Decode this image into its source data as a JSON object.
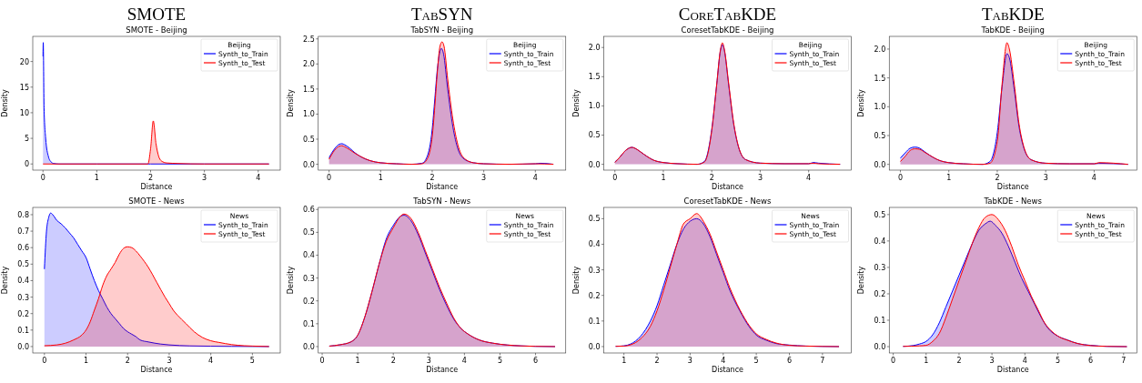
{
  "chart_data": [
    {
      "type": "area",
      "title": "SMOTE",
      "subtitle": "SMOTE - Beijing",
      "xlabel": "Distance",
      "ylabel": "Density",
      "legend_title": "Beijing",
      "legend": "top right",
      "xlim": [
        -0.19,
        4.41
      ],
      "xticks": [
        0,
        1,
        2,
        3,
        4
      ],
      "ylim": [
        -1.2,
        24.9
      ],
      "yticks": [
        0,
        5,
        10,
        15,
        20
      ],
      "series": [
        {
          "name": "Synth_to_Train",
          "color": "#0000ff",
          "x": [
            0,
            0.005,
            0.02,
            0.05,
            0.1,
            0.15,
            0.2,
            0.3,
            1,
            2,
            3,
            4.2
          ],
          "values": [
            21,
            23.7,
            11,
            5,
            1.5,
            0.4,
            0.1,
            0,
            0,
            0,
            0,
            0
          ]
        },
        {
          "name": "Synth_to_Test",
          "color": "#ff0000",
          "x": [
            0,
            1,
            1.95,
            2,
            2.05,
            2.1,
            2.15,
            2.2,
            2.3,
            2.5,
            3,
            4.2
          ],
          "values": [
            0,
            0,
            0,
            3,
            8.4,
            4,
            1.5,
            0.6,
            0.2,
            0.1,
            0,
            0
          ]
        }
      ]
    },
    {
      "type": "area",
      "title": "TabSYN",
      "subtitle": "TabSYN - Beijing",
      "xlabel": "Distance",
      "ylabel": "Density",
      "legend_title": "Beijing",
      "legend": "top right",
      "xlim": [
        -0.21,
        4.59
      ],
      "xticks": [
        0,
        1,
        2,
        3,
        4
      ],
      "ylim": [
        -0.117,
        2.55
      ],
      "yticks": [
        {
          "value": 0,
          "label": "0.0"
        },
        {
          "value": 0.5,
          "label": "0.5"
        },
        {
          "value": 1,
          "label": "1.0"
        },
        {
          "value": 1.5,
          "label": "1.5"
        },
        {
          "value": 2,
          "label": "2.0"
        },
        {
          "value": 2.5,
          "label": "2.5"
        }
      ],
      "series": [
        {
          "name": "Synth_to_Train",
          "color": "#0000ff",
          "x": [
            0,
            0.1,
            0.2,
            0.25,
            0.3,
            0.4,
            0.5,
            0.6,
            0.8,
            1,
            1.3,
            1.6,
            1.8,
            1.9,
            2,
            2.05,
            2.1,
            2.15,
            2.18,
            2.22,
            2.3,
            2.4,
            2.5,
            2.6,
            2.8,
            3,
            3.5,
            4,
            4.1,
            4.35
          ],
          "values": [
            0.13,
            0.3,
            0.4,
            0.41,
            0.39,
            0.32,
            0.23,
            0.16,
            0.07,
            0.03,
            0.01,
            0,
            0.02,
            0.15,
            0.7,
            1.3,
            1.9,
            2.25,
            2.31,
            2.2,
            1.5,
            0.75,
            0.3,
            0.12,
            0.03,
            0.01,
            0,
            0.01,
            0.02,
            0
          ]
        },
        {
          "name": "Synth_to_Test",
          "color": "#ff0000",
          "x": [
            0,
            0.1,
            0.2,
            0.25,
            0.3,
            0.4,
            0.5,
            0.6,
            0.8,
            1,
            1.3,
            1.6,
            1.8,
            1.9,
            2,
            2.05,
            2.1,
            2.15,
            2.19,
            2.23,
            2.3,
            2.4,
            2.5,
            2.6,
            2.8,
            3,
            3.5,
            4,
            4.35
          ],
          "values": [
            0.1,
            0.27,
            0.36,
            0.37,
            0.35,
            0.29,
            0.22,
            0.16,
            0.07,
            0.03,
            0.01,
            0,
            0.01,
            0.1,
            0.55,
            1.15,
            1.85,
            2.35,
            2.44,
            2.35,
            1.7,
            0.9,
            0.38,
            0.14,
            0.03,
            0.01,
            0,
            0.01,
            0
          ]
        }
      ]
    },
    {
      "type": "area",
      "title": "CoreTabKDE",
      "subtitle": "CoresetTabKDE - Beijing",
      "xlabel": "Distance",
      "ylabel": "Density",
      "legend_title": "Beijing",
      "legend": "top right",
      "xlim": [
        -0.23,
        4.88
      ],
      "xticks": [
        0,
        1,
        2,
        3,
        4
      ],
      "ylim": [
        -0.1,
        2.19
      ],
      "yticks": [
        {
          "value": 0,
          "label": "0.0"
        },
        {
          "value": 0.5,
          "label": "0.5"
        },
        {
          "value": 1,
          "label": "1.0"
        },
        {
          "value": 1.5,
          "label": "1.5"
        },
        {
          "value": 2,
          "label": "2.0"
        }
      ],
      "series": [
        {
          "name": "Synth_to_Train",
          "color": "#0000ff",
          "x": [
            0,
            0.1,
            0.2,
            0.3,
            0.35,
            0.4,
            0.5,
            0.6,
            0.8,
            1,
            1.3,
            1.7,
            1.85,
            2,
            2.1,
            2.18,
            2.22,
            2.26,
            2.35,
            2.45,
            2.55,
            2.7,
            3,
            3.5,
            4,
            4.1,
            4.2,
            4.65
          ],
          "values": [
            0.04,
            0.12,
            0.22,
            0.28,
            0.29,
            0.28,
            0.23,
            0.17,
            0.07,
            0.03,
            0.01,
            0,
            0.05,
            0.6,
            1.35,
            1.95,
            2.05,
            1.95,
            1.35,
            0.7,
            0.3,
            0.08,
            0.02,
            0.01,
            0.01,
            0.03,
            0.02,
            0
          ]
        },
        {
          "name": "Synth_to_Test",
          "color": "#ff0000",
          "x": [
            0,
            0.1,
            0.2,
            0.3,
            0.35,
            0.4,
            0.5,
            0.6,
            0.8,
            1,
            1.3,
            1.7,
            1.85,
            2,
            2.1,
            2.18,
            2.22,
            2.26,
            2.35,
            2.45,
            2.55,
            2.7,
            3,
            3.5,
            4,
            4.1,
            4.2,
            4.65
          ],
          "values": [
            0.03,
            0.12,
            0.22,
            0.28,
            0.29,
            0.28,
            0.23,
            0.17,
            0.07,
            0.03,
            0.01,
            0,
            0.04,
            0.58,
            1.35,
            1.97,
            2.08,
            1.97,
            1.38,
            0.72,
            0.31,
            0.08,
            0.02,
            0.01,
            0.01,
            0.02,
            0.01,
            0
          ]
        }
      ]
    },
    {
      "type": "area",
      "title": "TabKDE",
      "subtitle": "TabKDE - Beijing",
      "xlabel": "Distance",
      "ylabel": "Density",
      "legend_title": "Beijing",
      "legend": "top right",
      "xlim": [
        -0.23,
        4.88
      ],
      "xticks": [
        0,
        1,
        2,
        3,
        4
      ],
      "ylim": [
        -0.1,
        2.22
      ],
      "yticks": [
        {
          "value": 0,
          "label": "0.0"
        },
        {
          "value": 0.5,
          "label": "0.5"
        },
        {
          "value": 1,
          "label": "1.0"
        },
        {
          "value": 1.5,
          "label": "1.5"
        },
        {
          "value": 2,
          "label": "2.0"
        }
      ],
      "series": [
        {
          "name": "Synth_to_Train",
          "color": "#0000ff",
          "x": [
            0,
            0.1,
            0.2,
            0.3,
            0.4,
            0.5,
            0.6,
            0.8,
            1,
            1.3,
            1.7,
            1.85,
            2,
            2.1,
            2.2,
            2.25,
            2.35,
            2.45,
            2.55,
            2.7,
            3,
            3.5,
            4,
            4.1,
            4.7
          ],
          "values": [
            0.11,
            0.2,
            0.28,
            0.3,
            0.28,
            0.22,
            0.16,
            0.07,
            0.03,
            0.01,
            0,
            0.05,
            0.55,
            1.35,
            1.92,
            1.85,
            1.3,
            0.65,
            0.28,
            0.08,
            0.02,
            0.01,
            0.01,
            0.02,
            0
          ]
        },
        {
          "name": "Synth_to_Test",
          "color": "#ff0000",
          "x": [
            0,
            0.1,
            0.2,
            0.3,
            0.4,
            0.5,
            0.6,
            0.8,
            1,
            1.3,
            1.7,
            1.85,
            2,
            2.1,
            2.2,
            2.25,
            2.35,
            2.45,
            2.55,
            2.7,
            3,
            3.5,
            4,
            4.1,
            4.7
          ],
          "values": [
            0.05,
            0.14,
            0.24,
            0.27,
            0.26,
            0.21,
            0.16,
            0.07,
            0.03,
            0.01,
            0,
            0.02,
            0.4,
            1.4,
            2.11,
            2,
            1.4,
            0.7,
            0.3,
            0.08,
            0.02,
            0.01,
            0.01,
            0.03,
            0
          ]
        }
      ]
    },
    {
      "type": "area",
      "title": "SMOTE - News",
      "xlabel": "Distance",
      "ylabel": "Density",
      "legend_title": "News",
      "legend": "top right",
      "xlim": [
        -0.28,
        5.67
      ],
      "xticks": [
        0,
        1,
        2,
        3,
        4,
        5
      ],
      "ylim": [
        -0.039,
        0.844
      ],
      "yticks": [
        {
          "value": 0,
          "label": "0.0"
        },
        {
          "value": 0.1,
          "label": "0.1"
        },
        {
          "value": 0.2,
          "label": "0.2"
        },
        {
          "value": 0.3,
          "label": "0.3"
        },
        {
          "value": 0.4,
          "label": "0.4"
        },
        {
          "value": 0.5,
          "label": "0.5"
        },
        {
          "value": 0.6,
          "label": "0.6"
        },
        {
          "value": 0.7,
          "label": "0.7"
        },
        {
          "value": 0.8,
          "label": "0.8"
        }
      ],
      "series": [
        {
          "name": "Synth_to_Train",
          "color": "#0000ff",
          "x": [
            0,
            0.05,
            0.1,
            0.15,
            0.2,
            0.3,
            0.4,
            0.5,
            0.6,
            0.7,
            0.8,
            0.9,
            1,
            1.1,
            1.2,
            1.3,
            1.4,
            1.5,
            1.6,
            1.7,
            1.8,
            1.9,
            2,
            2.1,
            2.2,
            2.3,
            2.5,
            2.8,
            3,
            3.5,
            4,
            4.5,
            5.4
          ],
          "values": [
            0.47,
            0.7,
            0.78,
            0.81,
            0.8,
            0.765,
            0.745,
            0.72,
            0.69,
            0.66,
            0.62,
            0.58,
            0.54,
            0.47,
            0.4,
            0.34,
            0.29,
            0.24,
            0.2,
            0.17,
            0.14,
            0.11,
            0.09,
            0.075,
            0.06,
            0.04,
            0.028,
            0.015,
            0.01,
            0.004,
            0.002,
            0.001,
            0
          ]
        },
        {
          "name": "Synth_to_Test",
          "color": "#ff0000",
          "x": [
            0,
            0.3,
            0.5,
            0.7,
            0.9,
            1,
            1.1,
            1.2,
            1.3,
            1.4,
            1.5,
            1.6,
            1.7,
            1.8,
            1.9,
            2,
            2.1,
            2.2,
            2.3,
            2.5,
            2.7,
            2.9,
            3,
            3.1,
            3.2,
            3.4,
            3.6,
            3.8,
            4,
            4.2,
            4.5,
            4.8,
            5,
            5.4
          ],
          "values": [
            0.005,
            0.01,
            0.02,
            0.04,
            0.07,
            0.1,
            0.15,
            0.22,
            0.29,
            0.37,
            0.43,
            0.47,
            0.51,
            0.56,
            0.595,
            0.605,
            0.6,
            0.58,
            0.55,
            0.48,
            0.39,
            0.3,
            0.26,
            0.22,
            0.19,
            0.14,
            0.09,
            0.055,
            0.035,
            0.025,
            0.012,
            0.005,
            0.003,
            0
          ]
        }
      ]
    },
    {
      "type": "area",
      "title": "TabSYN - News",
      "xlabel": "Distance",
      "ylabel": "Density",
      "legend_title": "News",
      "legend": "top right",
      "xlim": [
        -0.11,
        6.85
      ],
      "xticks": [
        0,
        1,
        2,
        3,
        4,
        5,
        6
      ],
      "ylim": [
        -0.028,
        0.609
      ],
      "yticks": [
        {
          "value": 0,
          "label": "0.0"
        },
        {
          "value": 0.1,
          "label": "0.1"
        },
        {
          "value": 0.2,
          "label": "0.2"
        },
        {
          "value": 0.3,
          "label": "0.3"
        },
        {
          "value": 0.4,
          "label": "0.4"
        },
        {
          "value": 0.5,
          "label": "0.5"
        },
        {
          "value": 0.6,
          "label": "0.6"
        }
      ],
      "series": [
        {
          "name": "Synth_to_Train",
          "color": "#0000ff",
          "x": [
            0.2,
            0.5,
            0.8,
            1,
            1.2,
            1.4,
            1.6,
            1.8,
            2,
            2.2,
            2.3,
            2.5,
            2.7,
            2.9,
            3.1,
            3.3,
            3.5,
            3.7,
            3.9,
            4.1,
            4.4,
            4.8,
            5.2,
            5.6,
            6,
            6.55
          ],
          "values": [
            0.002,
            0.008,
            0.02,
            0.05,
            0.13,
            0.24,
            0.36,
            0.47,
            0.53,
            0.57,
            0.575,
            0.55,
            0.49,
            0.41,
            0.33,
            0.25,
            0.18,
            0.12,
            0.08,
            0.055,
            0.03,
            0.015,
            0.007,
            0.003,
            0.001,
            0
          ]
        },
        {
          "name": "Synth_to_Test",
          "color": "#ff0000",
          "x": [
            0.2,
            0.5,
            0.8,
            1,
            1.2,
            1.4,
            1.6,
            1.8,
            2,
            2.2,
            2.3,
            2.5,
            2.7,
            2.9,
            3.1,
            3.3,
            3.5,
            3.7,
            3.9,
            4.1,
            4.4,
            4.8,
            5.2,
            5.6,
            6,
            6.55
          ],
          "values": [
            0.002,
            0.008,
            0.02,
            0.05,
            0.13,
            0.24,
            0.36,
            0.46,
            0.52,
            0.57,
            0.58,
            0.56,
            0.5,
            0.42,
            0.34,
            0.26,
            0.19,
            0.125,
            0.08,
            0.055,
            0.03,
            0.015,
            0.007,
            0.003,
            0.001,
            0
          ]
        }
      ]
    },
    {
      "type": "area",
      "title": "CoresetTabKDE - News",
      "xlabel": "Distance",
      "ylabel": "Density",
      "legend_title": "News",
      "legend": "top right",
      "xlim": [
        0.39,
        7.87
      ],
      "xticks": [
        1,
        2,
        3,
        4,
        5,
        6,
        7
      ],
      "ylim": [
        -0.025,
        0.544
      ],
      "yticks": [
        {
          "value": 0,
          "label": "0.0"
        },
        {
          "value": 0.1,
          "label": "0.1"
        },
        {
          "value": 0.2,
          "label": "0.2"
        },
        {
          "value": 0.3,
          "label": "0.3"
        },
        {
          "value": 0.4,
          "label": "0.4"
        },
        {
          "value": 0.5,
          "label": "0.5"
        }
      ],
      "series": [
        {
          "name": "Synth_to_Train",
          "color": "#0000ff",
          "x": [
            0.75,
            1,
            1.2,
            1.5,
            1.8,
            2,
            2.2,
            2.4,
            2.6,
            2.8,
            3,
            3.2,
            3.4,
            3.6,
            3.8,
            4,
            4.2,
            4.5,
            4.8,
            5,
            5.3,
            5.6,
            6,
            6.5,
            7.5
          ],
          "values": [
            0.001,
            0.003,
            0.01,
            0.04,
            0.1,
            0.16,
            0.24,
            0.32,
            0.4,
            0.46,
            0.49,
            0.5,
            0.48,
            0.43,
            0.36,
            0.29,
            0.22,
            0.14,
            0.075,
            0.045,
            0.025,
            0.012,
            0.006,
            0.002,
            0
          ]
        },
        {
          "name": "Synth_to_Test",
          "color": "#ff0000",
          "x": [
            0.75,
            1,
            1.2,
            1.5,
            1.8,
            2,
            2.2,
            2.4,
            2.6,
            2.8,
            3,
            3.2,
            3.3,
            3.4,
            3.6,
            3.8,
            4,
            4.2,
            4.5,
            4.8,
            5,
            5.3,
            5.6,
            6,
            6.5,
            7.5
          ],
          "values": [
            0.001,
            0.002,
            0.007,
            0.03,
            0.08,
            0.14,
            0.22,
            0.31,
            0.4,
            0.48,
            0.5,
            0.52,
            0.51,
            0.49,
            0.44,
            0.37,
            0.3,
            0.23,
            0.145,
            0.08,
            0.05,
            0.028,
            0.014,
            0.005,
            0.002,
            0
          ]
        }
      ]
    },
    {
      "type": "area",
      "title": "TabKDE - News",
      "xlabel": "Distance",
      "ylabel": "Density",
      "legend_title": "News",
      "legend": "top right",
      "xlim": [
        -0.12,
        7.4
      ],
      "xticks": [
        0,
        1,
        2,
        3,
        4,
        5,
        6,
        7
      ],
      "ylim": [
        -0.024,
        0.527
      ],
      "yticks": [
        {
          "value": 0,
          "label": "0.0"
        },
        {
          "value": 0.1,
          "label": "0.1"
        },
        {
          "value": 0.2,
          "label": "0.2"
        },
        {
          "value": 0.3,
          "label": "0.3"
        },
        {
          "value": 0.4,
          "label": "0.4"
        },
        {
          "value": 0.5,
          "label": "0.5"
        }
      ],
      "series": [
        {
          "name": "Synth_to_Train",
          "color": "#0000ff",
          "x": [
            0.3,
            0.6,
            0.8,
            1,
            1.2,
            1.4,
            1.6,
            1.8,
            2,
            2.2,
            2.4,
            2.6,
            2.8,
            2.95,
            3.1,
            3.3,
            3.5,
            3.7,
            3.9,
            4.1,
            4.3,
            4.5,
            4.7,
            5,
            5.3,
            5.6,
            6,
            6.5,
            7.1
          ],
          "values": [
            0.001,
            0.004,
            0.01,
            0.02,
            0.045,
            0.09,
            0.15,
            0.21,
            0.27,
            0.33,
            0.39,
            0.44,
            0.465,
            0.475,
            0.46,
            0.43,
            0.38,
            0.32,
            0.26,
            0.21,
            0.16,
            0.11,
            0.07,
            0.04,
            0.025,
            0.012,
            0.005,
            0.001,
            0
          ]
        },
        {
          "name": "Synth_to_Test",
          "color": "#ff0000",
          "x": [
            0.3,
            0.8,
            1,
            1.2,
            1.4,
            1.6,
            1.8,
            2,
            2.2,
            2.4,
            2.6,
            2.8,
            3,
            3.2,
            3.4,
            3.6,
            3.8,
            4,
            4.2,
            4.4,
            4.6,
            4.8,
            5,
            5.3,
            5.6,
            6,
            6.5,
            7.1
          ],
          "values": [
            0.001,
            0.003,
            0.005,
            0.02,
            0.05,
            0.11,
            0.18,
            0.25,
            0.32,
            0.39,
            0.45,
            0.49,
            0.5,
            0.48,
            0.44,
            0.38,
            0.31,
            0.25,
            0.19,
            0.14,
            0.09,
            0.06,
            0.04,
            0.024,
            0.012,
            0.004,
            0.001,
            0
          ]
        }
      ]
    }
  ]
}
